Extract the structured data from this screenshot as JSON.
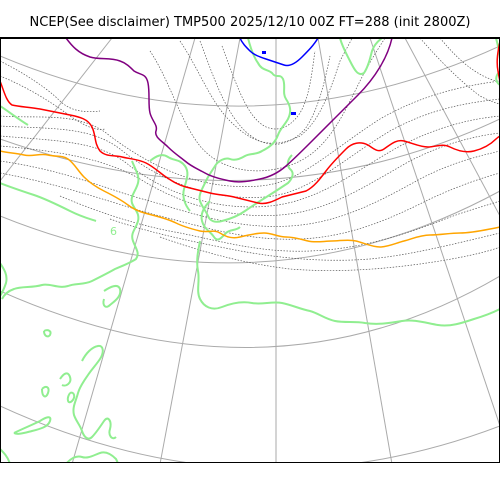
{
  "title": "NCEP(See disclaimer) TMP500 2025/12/10 00Z FT=288 (init 2800Z)",
  "map": {
    "colors": {
      "coastline": "#90ee90",
      "graticule": "#aaaaaa",
      "isotherm_thin": "#555555",
      "contour_purple": "#800080",
      "contour_red": "#ff0000",
      "contour_orange": "#ffa500",
      "contour_blue": "#0000ff",
      "frame": "#000000"
    },
    "contour_labels": [
      "6"
    ]
  }
}
